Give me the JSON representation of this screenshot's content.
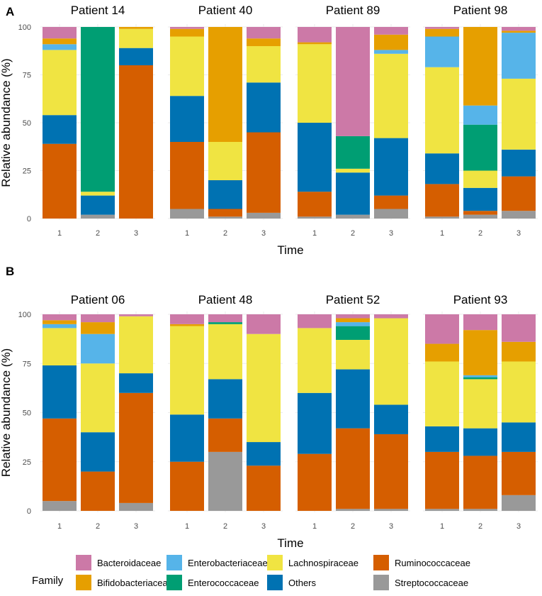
{
  "chart_data": {
    "type": "bar",
    "stacked": true,
    "xlabel": "Time",
    "ylabel": "Relative abundance (%)",
    "ylim": [
      0,
      100
    ],
    "yticks": [
      0,
      25,
      50,
      75,
      100
    ],
    "time_points": [
      "1",
      "2",
      "3"
    ],
    "legend": {
      "title": "Family",
      "position": "bottom",
      "entries": [
        {
          "name": "Bacteroidaceae",
          "color": "#CC79A7"
        },
        {
          "name": "Bifidobacteriaceae",
          "color": "#E69F00"
        },
        {
          "name": "Enterobacteriaceae",
          "color": "#56B4E9"
        },
        {
          "name": "Enterococcaceae",
          "color": "#009E73"
        },
        {
          "name": "Lachnospiraceae",
          "color": "#F0E442"
        },
        {
          "name": "Others",
          "color": "#0072B2"
        },
        {
          "name": "Ruminococcaceae",
          "color": "#D55E00"
        },
        {
          "name": "Streptococcaceae",
          "color": "#999999"
        }
      ]
    },
    "stack_order_bottom_to_top": [
      "Streptococcaceae",
      "Ruminococcaceae",
      "Others",
      "Lachnospiraceae",
      "Enterococcaceae",
      "Enterobacteriaceae",
      "Bifidobacteriaceae",
      "Bacteroidaceae"
    ],
    "panels": [
      {
        "label": "A",
        "patients": [
          {
            "name": "Patient 14",
            "bars": [
              {
                "Streptococcaceae": 0,
                "Ruminococcaceae": 39,
                "Others": 15,
                "Lachnospiraceae": 34,
                "Enterococcaceae": 0,
                "Enterobacteriaceae": 3,
                "Bifidobacteriaceae": 3,
                "Bacteroidaceae": 6
              },
              {
                "Streptococcaceae": 2,
                "Ruminococcaceae": 0,
                "Others": 10,
                "Lachnospiraceae": 2,
                "Enterococcaceae": 86,
                "Enterobacteriaceae": 0,
                "Bifidobacteriaceae": 0,
                "Bacteroidaceae": 0
              },
              {
                "Streptococcaceae": 0,
                "Ruminococcaceae": 80,
                "Others": 9,
                "Lachnospiraceae": 10,
                "Enterococcaceae": 0,
                "Enterobacteriaceae": 0,
                "Bifidobacteriaceae": 1,
                "Bacteroidaceae": 0
              }
            ]
          },
          {
            "name": "Patient 40",
            "bars": [
              {
                "Streptococcaceae": 5,
                "Ruminococcaceae": 35,
                "Others": 24,
                "Lachnospiraceae": 31,
                "Enterococcaceae": 0,
                "Enterobacteriaceae": 0,
                "Bifidobacteriaceae": 4,
                "Bacteroidaceae": 1
              },
              {
                "Streptococcaceae": 1,
                "Ruminococcaceae": 4,
                "Others": 15,
                "Lachnospiraceae": 20,
                "Enterococcaceae": 0,
                "Enterobacteriaceae": 0,
                "Bifidobacteriaceae": 60,
                "Bacteroidaceae": 0
              },
              {
                "Streptococcaceae": 3,
                "Ruminococcaceae": 42,
                "Others": 26,
                "Lachnospiraceae": 19,
                "Enterococcaceae": 0,
                "Enterobacteriaceae": 0,
                "Bifidobacteriaceae": 4,
                "Bacteroidaceae": 6
              }
            ]
          },
          {
            "name": "Patient 89",
            "bars": [
              {
                "Streptococcaceae": 1,
                "Ruminococcaceae": 13,
                "Others": 36,
                "Lachnospiraceae": 41,
                "Enterococcaceae": 0,
                "Enterobacteriaceae": 0,
                "Bifidobacteriaceae": 1,
                "Bacteroidaceae": 8
              },
              {
                "Streptococcaceae": 2,
                "Ruminococcaceae": 0,
                "Others": 22,
                "Lachnospiraceae": 2,
                "Enterococcaceae": 17,
                "Enterobacteriaceae": 0,
                "Bifidobacteriaceae": 0,
                "Bacteroidaceae": 57
              },
              {
                "Streptococcaceae": 5,
                "Ruminococcaceae": 7,
                "Others": 30,
                "Lachnospiraceae": 44,
                "Enterococcaceae": 0,
                "Enterobacteriaceae": 2,
                "Bifidobacteriaceae": 8,
                "Bacteroidaceae": 4
              }
            ]
          },
          {
            "name": "Patient 98",
            "bars": [
              {
                "Streptococcaceae": 1,
                "Ruminococcaceae": 17,
                "Others": 16,
                "Lachnospiraceae": 45,
                "Enterococcaceae": 0,
                "Enterobacteriaceae": 16,
                "Bifidobacteriaceae": 4,
                "Bacteroidaceae": 1
              },
              {
                "Streptococcaceae": 2,
                "Ruminococcaceae": 2,
                "Others": 12,
                "Lachnospiraceae": 9,
                "Enterococcaceae": 24,
                "Enterobacteriaceae": 10,
                "Bifidobacteriaceae": 41,
                "Bacteroidaceae": 0
              },
              {
                "Streptococcaceae": 4,
                "Ruminococcaceae": 18,
                "Others": 14,
                "Lachnospiraceae": 37,
                "Enterococcaceae": 0,
                "Enterobacteriaceae": 24,
                "Bifidobacteriaceae": 1,
                "Bacteroidaceae": 2
              }
            ]
          }
        ]
      },
      {
        "label": "B",
        "patients": [
          {
            "name": "Patient 06",
            "bars": [
              {
                "Streptococcaceae": 5,
                "Ruminococcaceae": 42,
                "Others": 27,
                "Lachnospiraceae": 19,
                "Enterococcaceae": 0,
                "Enterobacteriaceae": 2,
                "Bifidobacteriaceae": 2,
                "Bacteroidaceae": 3
              },
              {
                "Streptococcaceae": 0,
                "Ruminococcaceae": 20,
                "Others": 20,
                "Lachnospiraceae": 35,
                "Enterococcaceae": 0,
                "Enterobacteriaceae": 15,
                "Bifidobacteriaceae": 6,
                "Bacteroidaceae": 4
              },
              {
                "Streptococcaceae": 4,
                "Ruminococcaceae": 56,
                "Others": 10,
                "Lachnospiraceae": 29,
                "Enterococcaceae": 0,
                "Enterobacteriaceae": 0,
                "Bifidobacteriaceae": 0,
                "Bacteroidaceae": 1
              }
            ]
          },
          {
            "name": "Patient 48",
            "bars": [
              {
                "Streptococcaceae": 0,
                "Ruminococcaceae": 25,
                "Others": 24,
                "Lachnospiraceae": 45,
                "Enterococcaceae": 0,
                "Enterobacteriaceae": 0,
                "Bifidobacteriaceae": 1,
                "Bacteroidaceae": 5
              },
              {
                "Streptococcaceae": 30,
                "Ruminococcaceae": 17,
                "Others": 20,
                "Lachnospiraceae": 28,
                "Enterococcaceae": 1,
                "Enterobacteriaceae": 0,
                "Bifidobacteriaceae": 0,
                "Bacteroidaceae": 4
              },
              {
                "Streptococcaceae": 0,
                "Ruminococcaceae": 23,
                "Others": 12,
                "Lachnospiraceae": 55,
                "Enterococcaceae": 0,
                "Enterobacteriaceae": 0,
                "Bifidobacteriaceae": 0,
                "Bacteroidaceae": 10
              }
            ]
          },
          {
            "name": "Patient 52",
            "bars": [
              {
                "Streptococcaceae": 0,
                "Ruminococcaceae": 29,
                "Others": 31,
                "Lachnospiraceae": 33,
                "Enterococcaceae": 0,
                "Enterobacteriaceae": 0,
                "Bifidobacteriaceae": 0,
                "Bacteroidaceae": 7
              },
              {
                "Streptococcaceae": 1,
                "Ruminococcaceae": 41,
                "Others": 30,
                "Lachnospiraceae": 15,
                "Enterococcaceae": 7,
                "Enterobacteriaceae": 2,
                "Bifidobacteriaceae": 2,
                "Bacteroidaceae": 2
              },
              {
                "Streptococcaceae": 1,
                "Ruminococcaceae": 38,
                "Others": 15,
                "Lachnospiraceae": 44,
                "Enterococcaceae": 0,
                "Enterobacteriaceae": 0,
                "Bifidobacteriaceae": 0,
                "Bacteroidaceae": 2
              }
            ]
          },
          {
            "name": "Patient 93",
            "bars": [
              {
                "Streptococcaceae": 1,
                "Ruminococcaceae": 29,
                "Others": 13,
                "Lachnospiraceae": 33,
                "Enterococcaceae": 0,
                "Enterobacteriaceae": 0,
                "Bifidobacteriaceae": 9,
                "Bacteroidaceae": 15
              },
              {
                "Streptococcaceae": 1,
                "Ruminococcaceae": 27,
                "Others": 14,
                "Lachnospiraceae": 25,
                "Enterococcaceae": 1,
                "Enterobacteriaceae": 1,
                "Bifidobacteriaceae": 23,
                "Bacteroidaceae": 8
              },
              {
                "Streptococcaceae": 8,
                "Ruminococcaceae": 22,
                "Others": 15,
                "Lachnospiraceae": 31,
                "Enterococcaceae": 0,
                "Enterobacteriaceae": 0,
                "Bifidobacteriaceae": 10,
                "Bacteroidaceae": 14
              }
            ]
          }
        ]
      }
    ]
  }
}
